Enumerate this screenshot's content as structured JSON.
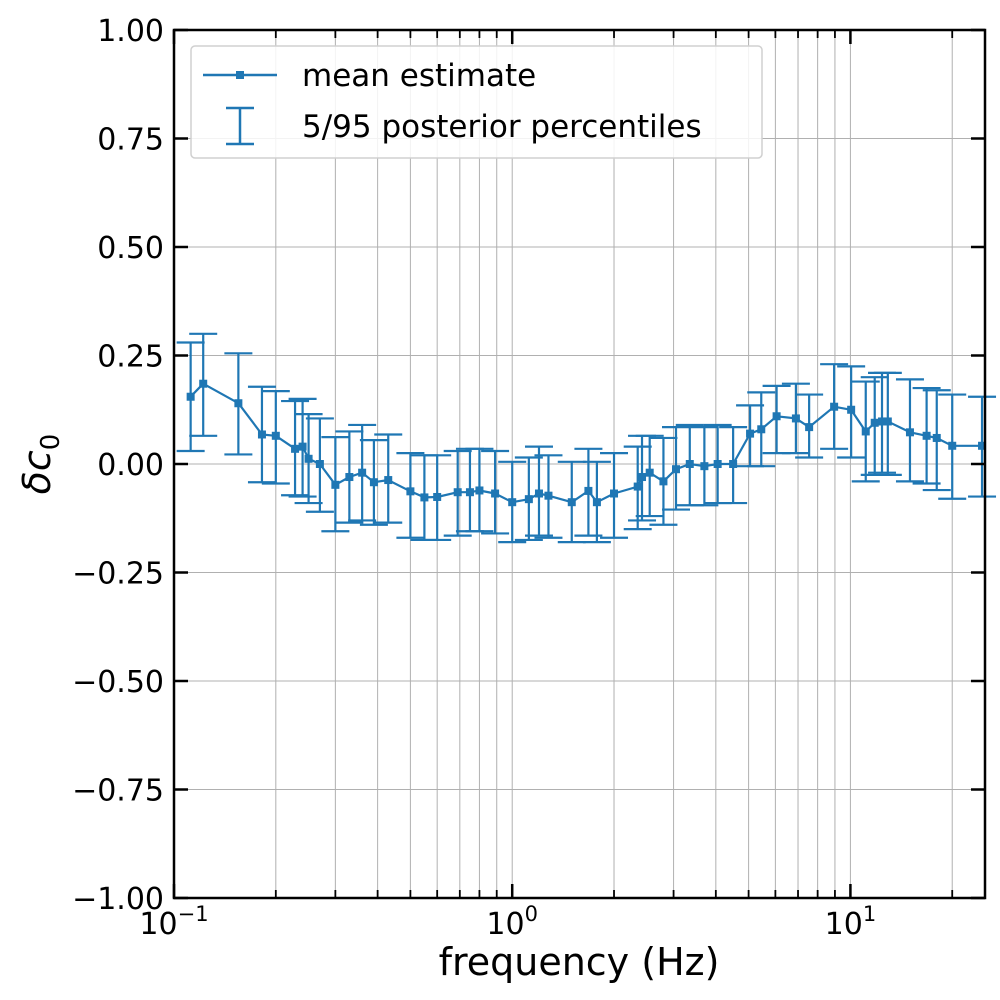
{
  "chart_data": {
    "type": "line",
    "title": "",
    "xlabel": "frequency (Hz)",
    "ylabel_symbol": "δc",
    "ylabel_subscript": "0",
    "xscale": "log",
    "xlim": [
      0.1,
      25.0
    ],
    "ylim": [
      -1.0,
      1.0
    ],
    "grid": true,
    "legend_position": "top-left",
    "legend": [
      "mean estimate",
      "5/95 posterior percentiles"
    ],
    "colors": {
      "series": "#1f77b4",
      "grid": "#b0b0b0",
      "axes": "#000000"
    },
    "x_tick_labels": [
      {
        "value": 0.1,
        "base": "10",
        "exp": "−1"
      },
      {
        "value": 1,
        "base": "10",
        "exp": "0"
      },
      {
        "value": 10,
        "base": "10",
        "exp": "1"
      }
    ],
    "y_ticks": [
      {
        "value": 1.0,
        "label": "1.00"
      },
      {
        "value": 0.75,
        "label": "0.75"
      },
      {
        "value": 0.5,
        "label": "0.50"
      },
      {
        "value": 0.25,
        "label": "0.25"
      },
      {
        "value": 0.0,
        "label": "0.00"
      },
      {
        "value": -0.25,
        "label": "−0.25"
      },
      {
        "value": -0.5,
        "label": "−0.50"
      },
      {
        "value": -0.75,
        "label": "−0.75"
      },
      {
        "value": -1.0,
        "label": "−1.00"
      }
    ],
    "series": [
      {
        "name": "mean estimate",
        "x": [
          0.112,
          0.122,
          0.155,
          0.182,
          0.2,
          0.228,
          0.24,
          0.25,
          0.27,
          0.3,
          0.33,
          0.36,
          0.39,
          0.43,
          0.5,
          0.55,
          0.6,
          0.69,
          0.75,
          0.8,
          0.89,
          1.0,
          1.12,
          1.2,
          1.28,
          1.5,
          1.68,
          1.78,
          2.0,
          2.35,
          2.42,
          2.55,
          2.8,
          3.05,
          3.35,
          3.7,
          4.05,
          4.5,
          5.05,
          5.45,
          6.05,
          6.9,
          7.55,
          8.95,
          10.05,
          11.1,
          11.8,
          12.4,
          12.9,
          15.0,
          16.8,
          18.0,
          20.0,
          24.5
        ],
        "mean": [
          0.155,
          0.185,
          0.14,
          0.068,
          0.065,
          0.035,
          0.04,
          0.012,
          0.0,
          -0.048,
          -0.03,
          -0.02,
          -0.042,
          -0.037,
          -0.063,
          -0.077,
          -0.076,
          -0.065,
          -0.065,
          -0.061,
          -0.068,
          -0.088,
          -0.081,
          -0.068,
          -0.073,
          -0.088,
          -0.062,
          -0.088,
          -0.068,
          -0.052,
          -0.03,
          -0.02,
          -0.04,
          -0.012,
          0.0,
          -0.005,
          0.0,
          0.0,
          0.07,
          0.08,
          0.11,
          0.105,
          0.085,
          0.132,
          0.125,
          0.075,
          0.095,
          0.098,
          0.098,
          0.073,
          0.065,
          0.06,
          0.042,
          0.042
        ],
        "p5": [
          0.03,
          0.065,
          0.022,
          -0.042,
          -0.045,
          -0.072,
          -0.075,
          -0.09,
          -0.11,
          -0.155,
          -0.135,
          -0.13,
          -0.14,
          -0.135,
          -0.17,
          -0.175,
          -0.175,
          -0.165,
          -0.155,
          -0.155,
          -0.16,
          -0.18,
          -0.175,
          -0.165,
          -0.17,
          -0.18,
          -0.165,
          -0.18,
          -0.17,
          -0.15,
          -0.13,
          -0.12,
          -0.14,
          -0.105,
          -0.095,
          -0.095,
          -0.09,
          -0.09,
          -0.005,
          -0.005,
          0.025,
          0.025,
          0.015,
          0.035,
          0.015,
          -0.04,
          -0.025,
          -0.02,
          -0.025,
          -0.04,
          -0.045,
          -0.06,
          -0.08,
          -0.075
        ],
        "p95": [
          0.28,
          0.3,
          0.255,
          0.178,
          0.168,
          0.145,
          0.15,
          0.115,
          0.105,
          0.062,
          0.075,
          0.09,
          0.055,
          0.068,
          0.025,
          0.02,
          0.02,
          0.03,
          0.035,
          0.035,
          0.03,
          0.005,
          0.015,
          0.04,
          0.02,
          0.005,
          0.035,
          0.005,
          0.025,
          0.04,
          0.065,
          0.065,
          0.06,
          0.085,
          0.09,
          0.085,
          0.09,
          0.085,
          0.135,
          0.165,
          0.18,
          0.185,
          0.16,
          0.23,
          0.225,
          0.19,
          0.2,
          0.21,
          0.21,
          0.195,
          0.175,
          0.17,
          0.16,
          0.155
        ]
      }
    ]
  }
}
